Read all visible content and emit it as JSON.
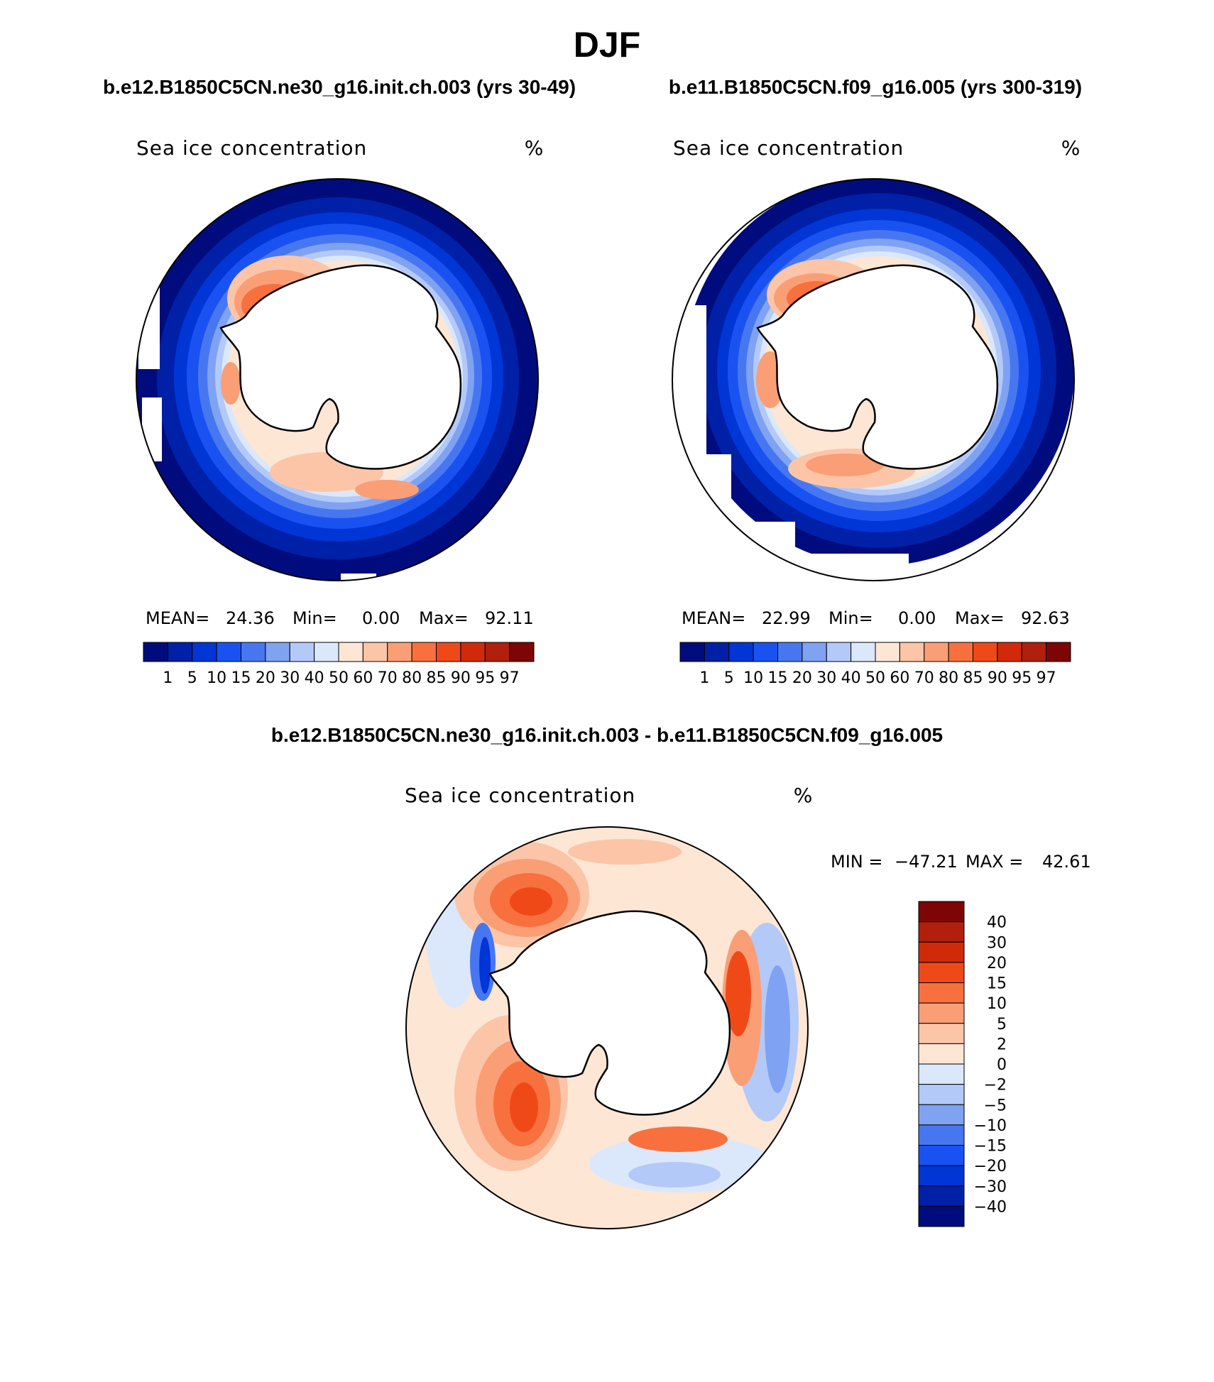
{
  "figure_title": "DJF",
  "chart_data": [
    {
      "type": "heatmap",
      "projection": "south-polar-stereographic",
      "case_title": "b.e12.B1850C5CN.ne30_g16.init.ch.003 (yrs 30-49)",
      "field_title": "Sea ice concentration",
      "units": "%",
      "stats": {
        "mean_label": "MEAN=",
        "mean": "24.36",
        "min_label": "Min=",
        "min": "0.00",
        "max_label": "Max=",
        "max": "92.11"
      },
      "colorbar": {
        "orientation": "horizontal",
        "levels": [
          "1",
          "5",
          "10",
          "15",
          "20",
          "30",
          "40",
          "50",
          "60",
          "70",
          "80",
          "85",
          "90",
          "95",
          "97"
        ],
        "colors": [
          "#000c7d",
          "#0020a8",
          "#0035d6",
          "#1a52f2",
          "#4777f0",
          "#7fa2f2",
          "#b3c9f8",
          "#dbe8fb",
          "#fde6d4",
          "#fcc5a8",
          "#fa9e76",
          "#f8703e",
          "#f04918",
          "#d02a0a",
          "#b0200c",
          "#7d0505"
        ]
      },
      "ice_edge": "visible"
    },
    {
      "type": "heatmap",
      "projection": "south-polar-stereographic",
      "case_title": "b.e11.B1850C5CN.f09_g16.005 (yrs 300-319)",
      "field_title": "Sea ice concentration",
      "units": "%",
      "stats": {
        "mean_label": "MEAN=",
        "mean": "22.99",
        "min_label": "Min=",
        "min": "0.00",
        "max_label": "Max=",
        "max": "92.63"
      },
      "colorbar": {
        "orientation": "horizontal",
        "levels": [
          "1",
          "5",
          "10",
          "15",
          "20",
          "30",
          "40",
          "50",
          "60",
          "70",
          "80",
          "85",
          "90",
          "95",
          "97"
        ],
        "colors": [
          "#000c7d",
          "#0020a8",
          "#0035d6",
          "#1a52f2",
          "#4777f0",
          "#7fa2f2",
          "#b3c9f8",
          "#dbe8fb",
          "#fde6d4",
          "#fcc5a8",
          "#fa9e76",
          "#f8703e",
          "#f04918",
          "#d02a0a",
          "#b0200c",
          "#7d0505"
        ]
      },
      "ice_edge": "visible"
    },
    {
      "type": "heatmap",
      "projection": "south-polar-stereographic",
      "case_title": "b.e12.B1850C5CN.ne30_g16.init.ch.003 - b.e11.B1850C5CN.f09_g16.005",
      "field_title": "Sea ice concentration",
      "units": "%",
      "stats": {
        "min_label": "MIN =",
        "min": "−47.21",
        "max_label": "MAX =",
        "max": "42.61"
      },
      "colorbar": {
        "orientation": "vertical",
        "levels": [
          "40",
          "30",
          "20",
          "15",
          "10",
          "5",
          "2",
          "0",
          "−2",
          "−5",
          "−10",
          "−15",
          "−20",
          "−30",
          "−40"
        ],
        "colors": [
          "#7d0505",
          "#b0200c",
          "#d02a0a",
          "#f04918",
          "#f8703e",
          "#fa9e76",
          "#fcc5a8",
          "#fde6d4",
          "#dbe8fb",
          "#b3c9f8",
          "#7fa2f2",
          "#4777f0",
          "#1a52f2",
          "#0035d6",
          "#0020a8",
          "#000c7d"
        ]
      }
    }
  ]
}
